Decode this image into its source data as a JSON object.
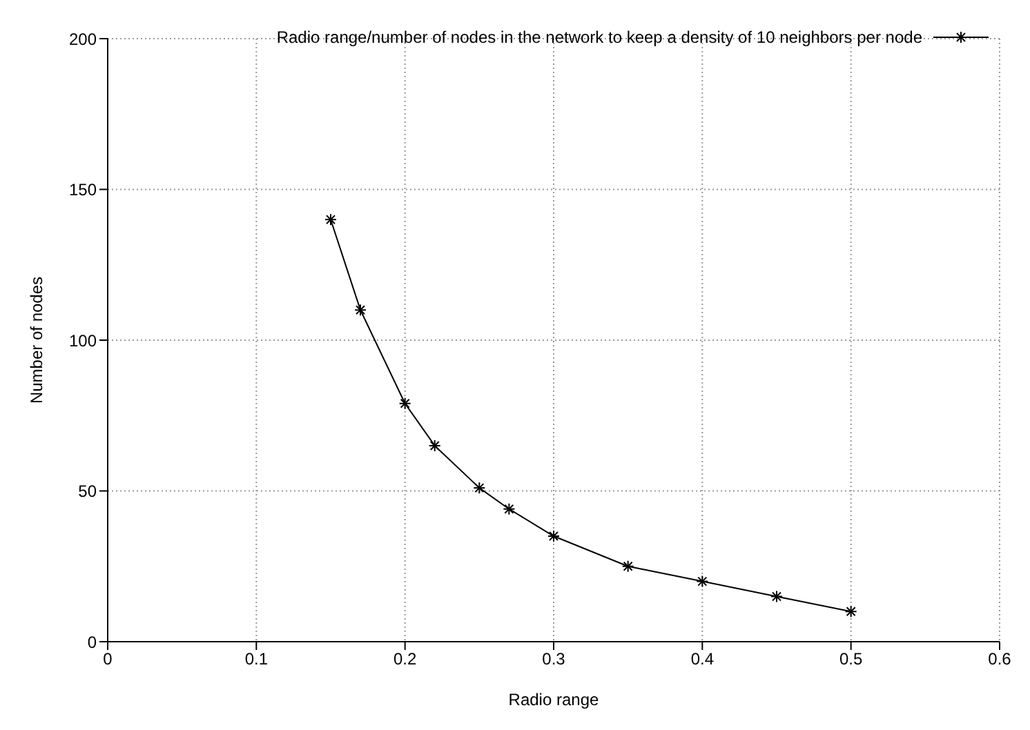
{
  "chart_data": {
    "type": "line",
    "xlabel": "Radio range",
    "ylabel": "Number of nodes",
    "xlim": [
      0,
      0.6
    ],
    "xticks": [
      0,
      0.1,
      0.2,
      0.3,
      0.4,
      0.5,
      0.6
    ],
    "ylim": [
      0,
      200
    ],
    "yticks": [
      0,
      50,
      100,
      150,
      200
    ],
    "grid": true,
    "legend": "top right",
    "marker": "cross",
    "line_style": "solid",
    "series": [
      {
        "name": "Radio range/number of nodes in the network to keep a density of 10 neighbors per node",
        "color": "#000000",
        "x": [
          0.15,
          0.17,
          0.2,
          0.22,
          0.25,
          0.27,
          0.3,
          0.35,
          0.4,
          0.45,
          0.5
        ],
        "values": [
          140,
          110,
          79,
          65,
          51,
          44,
          35,
          25,
          20,
          15,
          10
        ]
      }
    ]
  }
}
